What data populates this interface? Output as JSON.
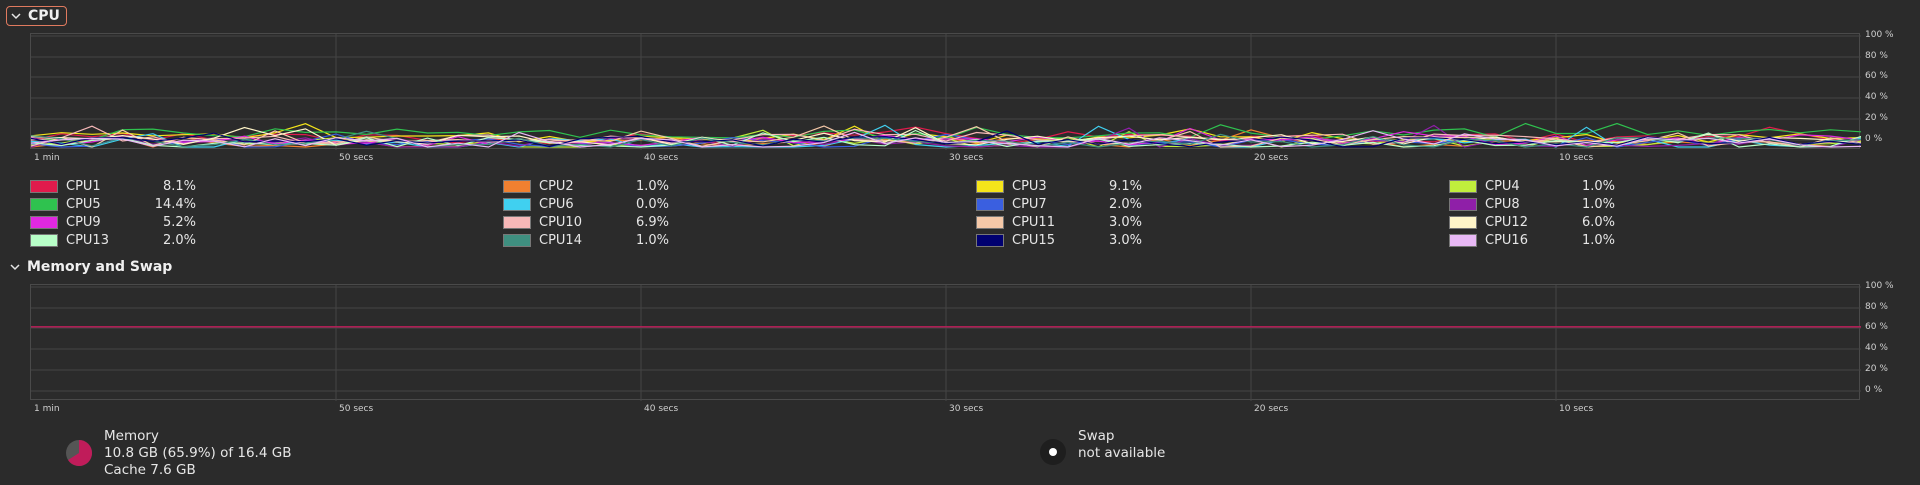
{
  "cpu_section": {
    "title": "CPU"
  },
  "memory_section": {
    "title": "Memory and Swap"
  },
  "y_ticks": [
    "100 %",
    "80 %",
    "60 %",
    "40 %",
    "20 %",
    "0 %"
  ],
  "x_ticks": [
    "1 min",
    "50 secs",
    "40 secs",
    "30 secs",
    "20 secs",
    "10 secs"
  ],
  "cpus": [
    {
      "name": "CPU1",
      "value": "8.1%",
      "color": "#e01b4c"
    },
    {
      "name": "CPU2",
      "value": "1.0%",
      "color": "#f08030"
    },
    {
      "name": "CPU3",
      "value": "9.1%",
      "color": "#f5e51a"
    },
    {
      "name": "CPU4",
      "value": "1.0%",
      "color": "#c0ef3c"
    },
    {
      "name": "CPU5",
      "value": "14.4%",
      "color": "#2fc24f"
    },
    {
      "name": "CPU6",
      "value": "0.0%",
      "color": "#40d0f0"
    },
    {
      "name": "CPU7",
      "value": "2.0%",
      "color": "#3a5fe0"
    },
    {
      "name": "CPU8",
      "value": "1.0%",
      "color": "#8f1fa8"
    },
    {
      "name": "CPU9",
      "value": "5.2%",
      "color": "#e028e0"
    },
    {
      "name": "CPU10",
      "value": "6.9%",
      "color": "#f7b8b8"
    },
    {
      "name": "CPU11",
      "value": "3.0%",
      "color": "#f5c8a8"
    },
    {
      "name": "CPU12",
      "value": "6.0%",
      "color": "#fff5c8"
    },
    {
      "name": "CPU13",
      "value": "2.0%",
      "color": "#b8ffc8"
    },
    {
      "name": "CPU14",
      "value": "1.0%",
      "color": "#3f8f80"
    },
    {
      "name": "CPU15",
      "value": "3.0%",
      "color": "#000070"
    },
    {
      "name": "CPU16",
      "value": "1.0%",
      "color": "#e8b8f5"
    }
  ],
  "memory": {
    "label": "Memory",
    "usage": "10.8 GB (65.9%) of 16.4 GB",
    "cache": "Cache 7.6 GB",
    "percent": 65.9,
    "color": "#c01c5a"
  },
  "swap": {
    "label": "Swap",
    "status": "not available"
  }
}
